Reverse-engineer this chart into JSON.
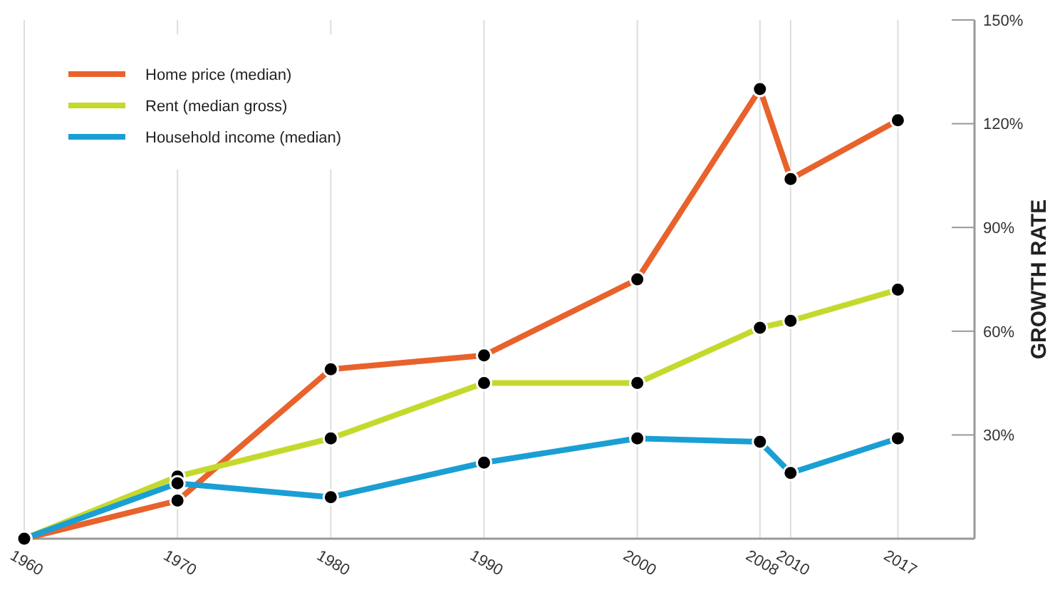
{
  "chart_data": {
    "type": "line",
    "ylabel": "GROWTH RATE",
    "x": [
      1960,
      1970,
      1980,
      1990,
      2000,
      2008,
      2010,
      2017
    ],
    "series": [
      {
        "name": "Home price (median)",
        "color": "#e8622c",
        "values": [
          0,
          11,
          49,
          53,
          75,
          130,
          104,
          121
        ]
      },
      {
        "name": "Rent (median gross)",
        "color": "#c5d92d",
        "values": [
          0,
          18,
          29,
          45,
          45,
          61,
          63,
          72
        ]
      },
      {
        "name": "Household income (median)",
        "color": "#1a9fd4",
        "values": [
          0,
          16,
          12,
          22,
          29,
          28,
          19,
          29
        ]
      }
    ],
    "xlim": [
      1960,
      2022
    ],
    "xticks": [
      1960,
      1970,
      1980,
      1990,
      2000,
      2008,
      2010,
      2017
    ],
    "ylim": [
      0,
      150
    ],
    "yticks": [
      {
        "value": 30,
        "label": "30%"
      },
      {
        "value": 60,
        "label": "60%"
      },
      {
        "value": 90,
        "label": "90%"
      },
      {
        "value": 120,
        "label": "120%"
      },
      {
        "value": 150,
        "label": "150%"
      }
    ],
    "grid": "x",
    "legend": "top left",
    "marker": "circle",
    "line_style": "solid"
  }
}
